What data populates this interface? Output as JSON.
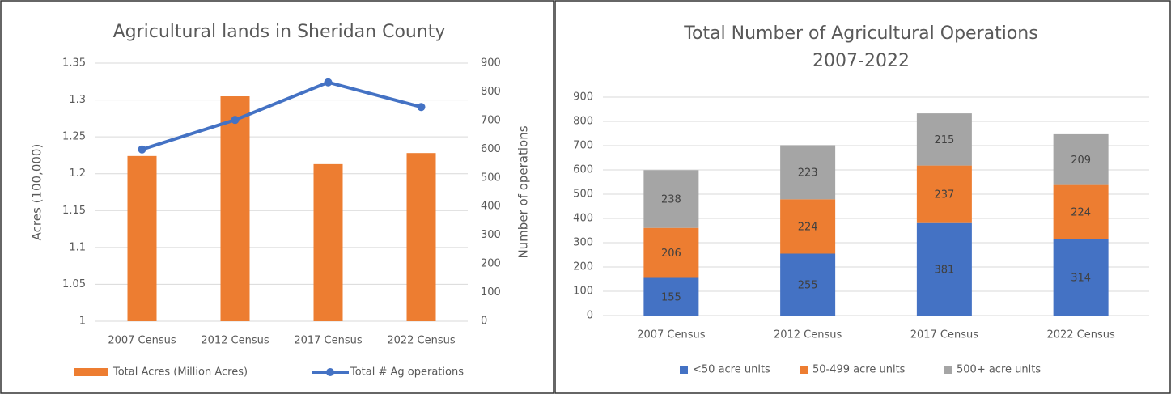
{
  "chart_data": [
    {
      "type": "bar_line",
      "title": "Agricultural lands in Sheridan County",
      "categories": [
        "2007 Census",
        "2012 Census",
        "2017 Census",
        "2022 Census"
      ],
      "series": [
        {
          "name": "Total Acres (Million Acres)",
          "type": "bar",
          "color": "#ed7d31",
          "values": [
            1.224,
            1.305,
            1.213,
            1.228
          ]
        },
        {
          "name": "Total # Ag operations",
          "type": "line",
          "axis": "y2",
          "color": "#4472c4",
          "values": [
            599,
            702,
            833,
            747
          ]
        }
      ],
      "ylabel": "Acres (100,000)",
      "y2label": "Number of operations",
      "ylim": [
        1,
        1.35
      ],
      "yticks": [
        1,
        1.05,
        1.1,
        1.15,
        1.2,
        1.25,
        1.3,
        1.35
      ],
      "y2lim": [
        0,
        900
      ],
      "y2ticks": [
        0,
        100,
        200,
        300,
        400,
        500,
        600,
        700,
        800,
        900
      ],
      "grid": true,
      "legend": "bottom"
    },
    {
      "type": "stacked_bar",
      "title": [
        "Total Number of Agricultural Operations",
        "2007-2022"
      ],
      "categories": [
        "2007 Census",
        "2012 Census",
        "2017 Census",
        "2022 Census"
      ],
      "series": [
        {
          "name": "<50 acre units",
          "color": "#4472c4",
          "values": [
            155,
            255,
            381,
            314
          ]
        },
        {
          "name": "50-499 acre units",
          "color": "#ed7d31",
          "values": [
            206,
            224,
            237,
            224
          ]
        },
        {
          "name": "500+ acre units",
          "color": "#a5a5a5",
          "values": [
            238,
            223,
            215,
            209
          ]
        }
      ],
      "ylim": [
        0,
        900
      ],
      "yticks": [
        0,
        100,
        200,
        300,
        400,
        500,
        600,
        700,
        800,
        900
      ],
      "grid": true,
      "legend": "bottom"
    }
  ]
}
